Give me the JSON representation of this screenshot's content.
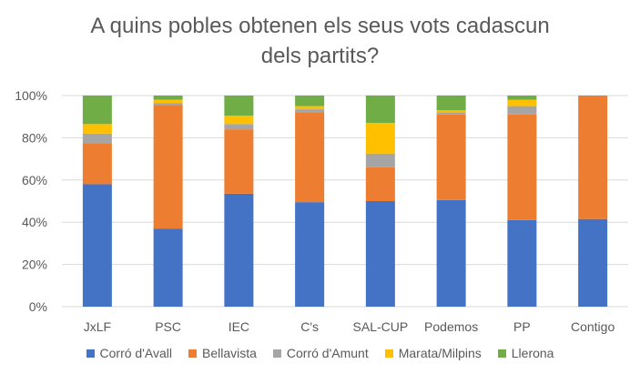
{
  "chart_data": {
    "type": "bar",
    "stacked": true,
    "percent": true,
    "title_lines": [
      "A quins pobles obtenen els seus vots cadascun",
      "dels partits?"
    ],
    "categories": [
      "JxLF",
      "PSC",
      "IEC",
      "C's",
      "SAL-CUP",
      "Podemos",
      "PP",
      "Contigo"
    ],
    "y_ticks": [
      "0%",
      "20%",
      "40%",
      "60%",
      "80%",
      "100%"
    ],
    "ylim": [
      0,
      100
    ],
    "grid": true,
    "legend_position": "bottom",
    "series": [
      {
        "name": "Corró d'Avall",
        "color": "#4472C4",
        "values": [
          58,
          37,
          53.5,
          49.5,
          50,
          50.5,
          41,
          41.5
        ]
      },
      {
        "name": "Bellavista",
        "color": "#ED7D31",
        "values": [
          19.5,
          58.5,
          30.5,
          42.5,
          16,
          40.5,
          50,
          58.5
        ]
      },
      {
        "name": "Corró d'Amunt",
        "color": "#A5A5A5",
        "values": [
          4.5,
          1,
          2.5,
          1.5,
          6.5,
          1,
          4,
          0
        ]
      },
      {
        "name": "Marata/Milpins",
        "color": "#FFC000",
        "values": [
          4.5,
          1.5,
          4,
          1.5,
          14.5,
          1,
          3,
          0
        ]
      },
      {
        "name": "Llerona",
        "color": "#70AD47",
        "values": [
          13.5,
          2,
          9.5,
          5,
          13,
          7,
          2,
          0
        ]
      }
    ]
  }
}
